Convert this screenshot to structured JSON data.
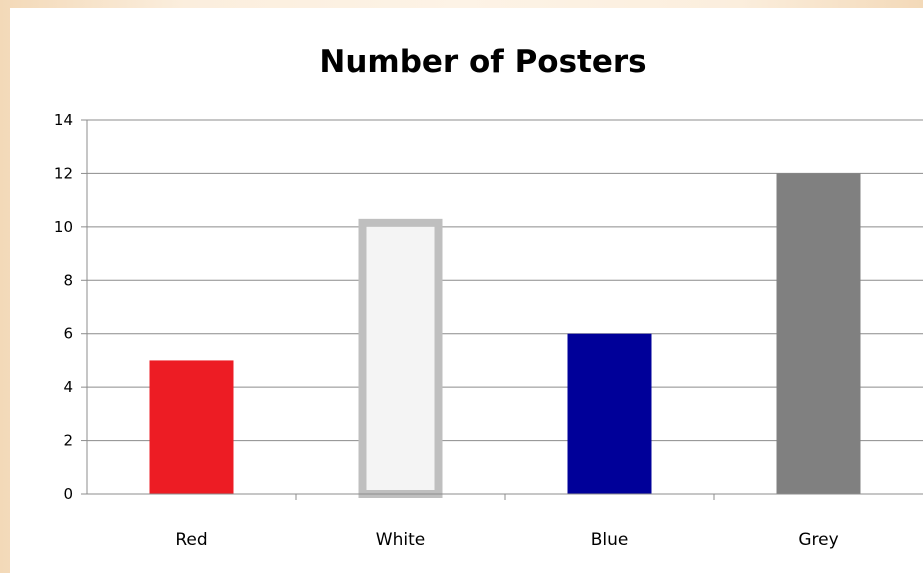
{
  "chart_data": {
    "type": "bar",
    "title": "Number of Posters",
    "categories": [
      "Red",
      "White",
      "Blue",
      "Grey"
    ],
    "values": [
      5,
      10.3,
      6,
      12
    ],
    "colors": [
      "#ed1c24",
      "#f4f4f4",
      "#000099",
      "#808080"
    ],
    "outline_colors": [
      "none",
      "#bfbfbf",
      "none",
      "none"
    ],
    "xlabel": "",
    "ylabel": "",
    "ylim": [
      0,
      14
    ],
    "yticks": [
      0,
      2,
      4,
      6,
      8,
      10,
      12,
      14
    ],
    "grid": true,
    "legend": false
  }
}
